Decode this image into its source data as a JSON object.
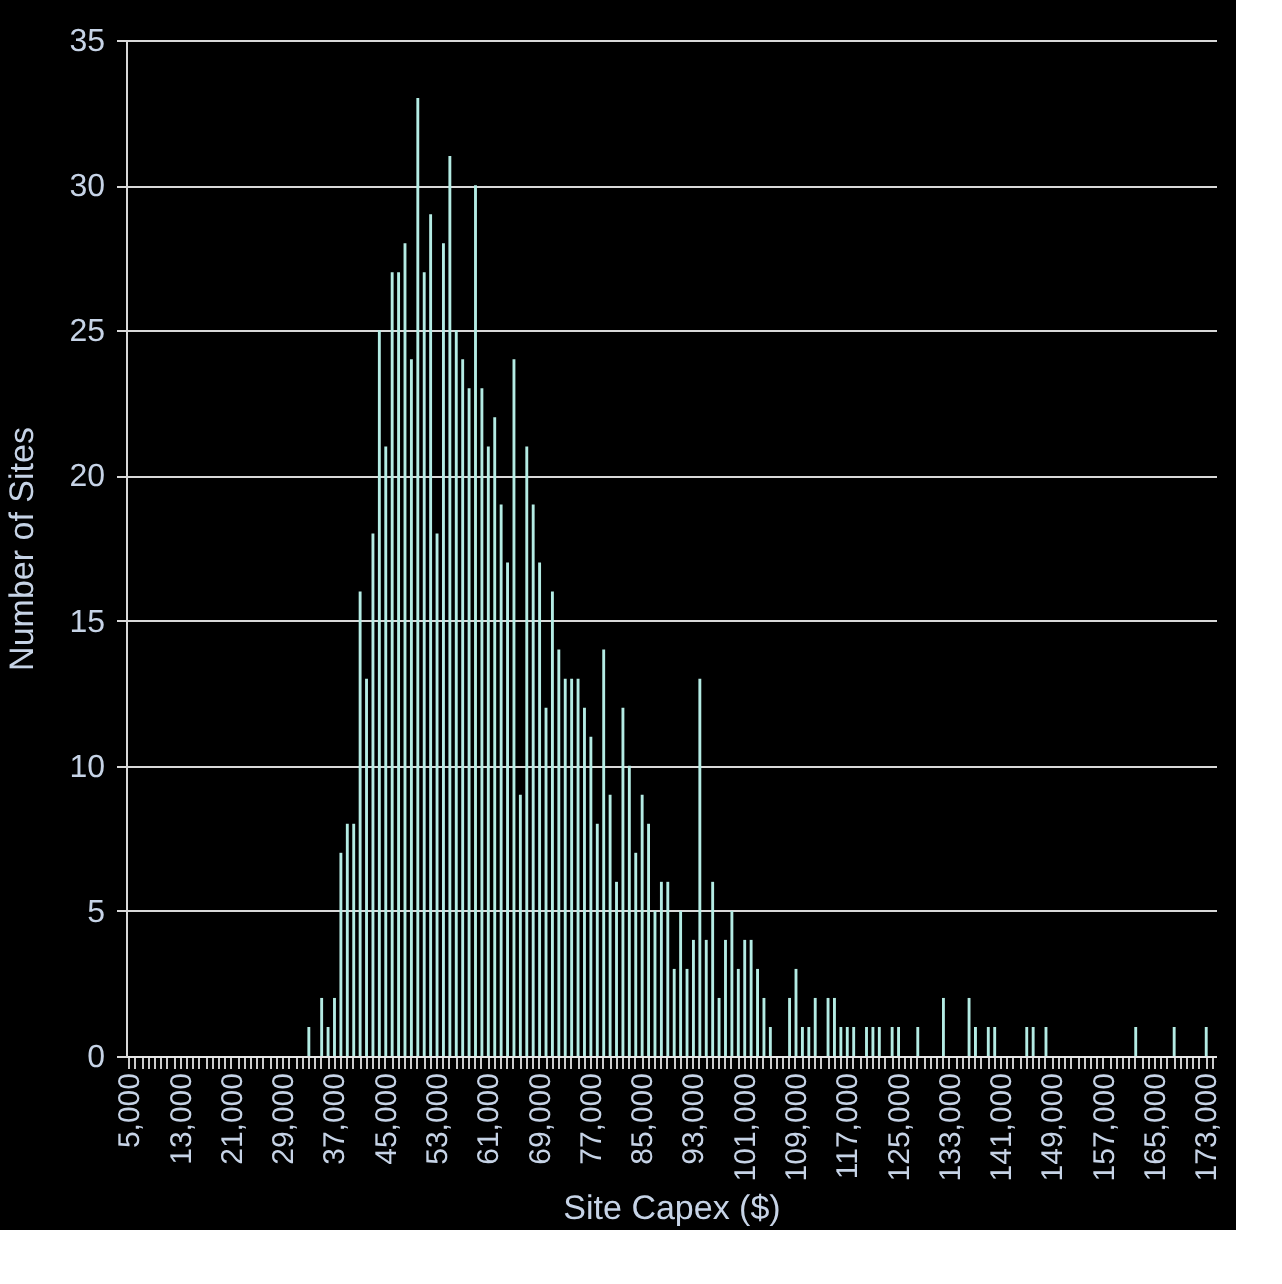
{
  "chart_data": {
    "type": "bar",
    "xlabel": "Site Capex ($)",
    "ylabel": "Number of Sites",
    "color": "#b4ece4",
    "categories": [
      "5,000",
      null,
      null,
      null,
      null,
      null,
      null,
      null,
      "13,000",
      null,
      null,
      null,
      null,
      null,
      null,
      null,
      "21,000",
      null,
      null,
      null,
      null,
      null,
      null,
      null,
      "29,000",
      null,
      null,
      null,
      null,
      null,
      null,
      null,
      "37,000",
      null,
      null,
      null,
      null,
      null,
      null,
      null,
      "45,000",
      null,
      null,
      null,
      null,
      null,
      null,
      null,
      "53,000",
      null,
      null,
      null,
      null,
      null,
      null,
      null,
      "61,000",
      null,
      null,
      null,
      null,
      null,
      null,
      null,
      "69,000",
      null,
      null,
      null,
      null,
      null,
      null,
      null,
      "77,000",
      null,
      null,
      null,
      null,
      null,
      null,
      null,
      "85,000",
      null,
      null,
      null,
      null,
      null,
      null,
      null,
      "93,000",
      null,
      null,
      null,
      null,
      null,
      null,
      null,
      "101,000",
      null,
      null,
      null,
      null,
      null,
      null,
      null,
      "109,000",
      null,
      null,
      null,
      null,
      null,
      null,
      null,
      "117,000",
      null,
      null,
      null,
      null,
      null,
      null,
      null,
      "125,000",
      null,
      null,
      null,
      null,
      null,
      null,
      null,
      "133,000",
      null,
      null,
      null,
      null,
      null,
      null,
      null,
      "141,000",
      null,
      null,
      null,
      null,
      null,
      null,
      null,
      "149,000",
      null,
      null,
      null,
      null,
      null,
      null,
      null,
      "157,000",
      null,
      null,
      null,
      null,
      null,
      null,
      null,
      "165,000",
      null,
      null,
      null,
      null,
      null,
      null,
      null,
      "173,000",
      null
    ],
    "values": [
      0,
      0,
      0,
      0,
      0,
      0,
      0,
      0,
      0,
      0,
      0,
      0,
      0,
      0,
      0,
      0,
      0,
      0,
      0,
      0,
      0,
      0,
      0,
      0,
      0,
      0,
      0,
      0,
      1,
      0,
      2,
      1,
      2,
      7,
      8,
      8,
      16,
      13,
      18,
      25,
      21,
      27,
      27,
      28,
      24,
      33,
      27,
      29,
      18,
      28,
      31,
      25,
      24,
      23,
      30,
      23,
      21,
      22,
      19,
      17,
      24,
      9,
      21,
      19,
      17,
      12,
      16,
      14,
      13,
      13,
      13,
      12,
      11,
      8,
      14,
      9,
      6,
      12,
      10,
      7,
      9,
      8,
      5,
      6,
      6,
      3,
      5,
      3,
      4,
      13,
      4,
      6,
      2,
      4,
      5,
      3,
      4,
      4,
      3,
      2,
      1,
      0,
      0,
      2,
      3,
      1,
      1,
      2,
      0,
      2,
      2,
      1,
      1,
      1,
      0,
      1,
      1,
      1,
      0,
      1,
      1,
      0,
      0,
      1,
      0,
      0,
      0,
      2,
      0,
      0,
      0,
      2,
      1,
      0,
      1,
      1,
      0,
      0,
      0,
      0,
      1,
      1,
      0,
      1,
      0,
      0,
      0,
      0,
      0,
      0,
      0,
      0,
      0,
      0,
      0,
      0,
      0,
      1,
      0,
      0,
      0,
      0,
      0,
      1,
      0,
      0,
      0,
      0,
      1,
      0
    ],
    "ylim": [
      0,
      35
    ],
    "yticks": [
      0,
      5,
      10,
      15,
      20,
      25,
      30,
      35
    ],
    "grid": "y"
  }
}
